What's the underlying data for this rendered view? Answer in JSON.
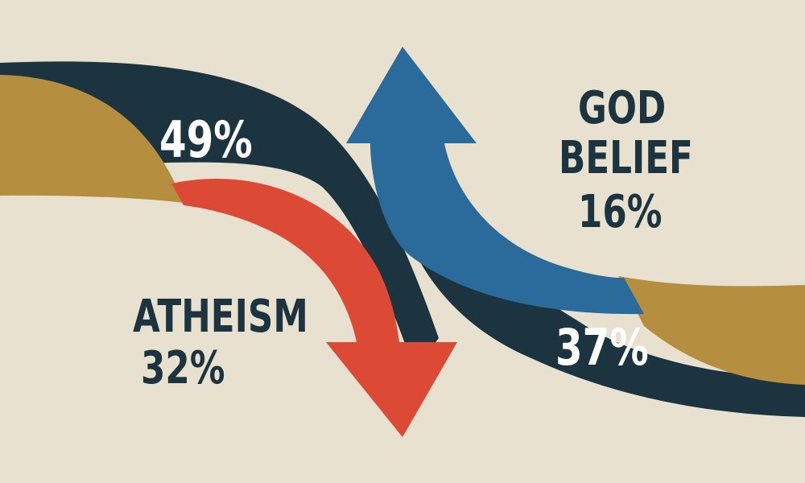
{
  "colors": {
    "background": "#e8e1d0",
    "dark_navy": "#1c3340",
    "gold": "#b58e40",
    "red": "#dc4a35",
    "blue": "#2a6b9c",
    "label_dark": "#1c3340",
    "label_light": "#ffffff"
  },
  "labels": {
    "top_left_percent": "49%",
    "bottom_right_percent": "37%",
    "god_belief_line1": "GOD",
    "god_belief_line2": "BELIEF",
    "god_belief_percent": "16%",
    "atheism_title": "ATHEISM",
    "atheism_percent": "32%"
  },
  "arrows": {
    "red_arrow_direction": "down",
    "blue_arrow_direction": "up"
  }
}
